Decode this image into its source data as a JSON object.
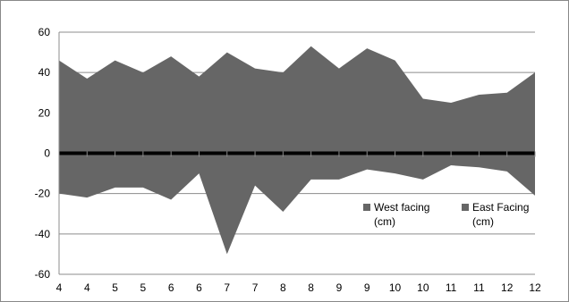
{
  "chart_data": {
    "type": "area",
    "categories": [
      "4",
      "4",
      "5",
      "5",
      "6",
      "6",
      "7",
      "7",
      "8",
      "8",
      "9",
      "9",
      "10",
      "10",
      "11",
      "11",
      "12",
      "12"
    ],
    "series": [
      {
        "name": "West facing (cm)",
        "legend_lines": [
          "West facing",
          "(cm)"
        ],
        "values": [
          46,
          37,
          46,
          40,
          48,
          38,
          50,
          42,
          40,
          53,
          42,
          52,
          46,
          27,
          25,
          29,
          30,
          40
        ],
        "color": "#666666"
      },
      {
        "name": "East Facing (cm)",
        "legend_lines": [
          "East Facing",
          "(cm)"
        ],
        "values": [
          -20,
          -22,
          -17,
          -17,
          -23,
          -10,
          -50,
          -16,
          -29,
          -13,
          -13,
          -8,
          -10,
          -13,
          -6,
          -7,
          -9,
          -21
        ],
        "color": "#666666"
      }
    ],
    "ylim": [
      -60,
      60
    ],
    "yticks": [
      60,
      40,
      20,
      0,
      -20,
      -40,
      -60
    ],
    "grid": true,
    "zero_line": true,
    "legend_position": "lower-right"
  }
}
